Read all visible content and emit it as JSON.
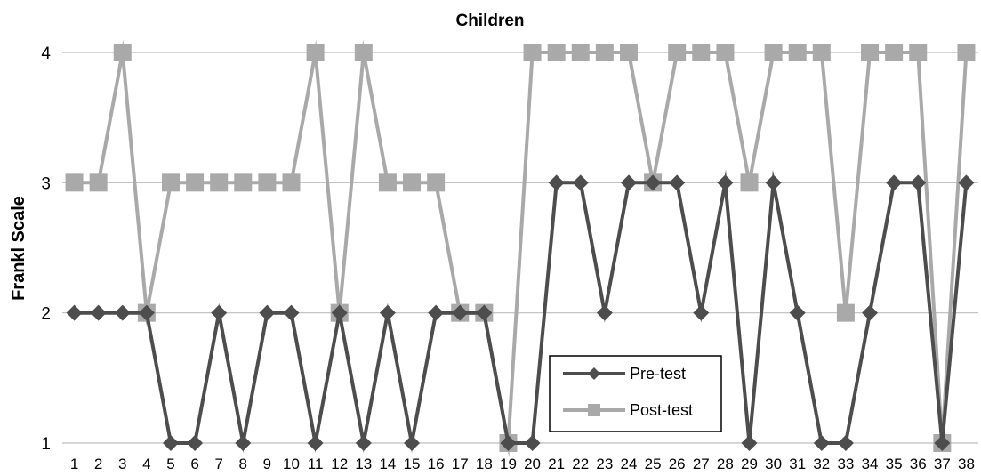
{
  "chart_data": {
    "type": "line",
    "title": "Children",
    "xlabel": "",
    "ylabel": "Frankl Scale",
    "x": [
      1,
      2,
      3,
      4,
      5,
      6,
      7,
      8,
      9,
      10,
      11,
      12,
      13,
      14,
      15,
      16,
      17,
      18,
      19,
      20,
      21,
      22,
      23,
      24,
      25,
      26,
      27,
      28,
      29,
      30,
      31,
      32,
      33,
      34,
      35,
      36,
      37,
      38
    ],
    "x_tick_labels": [
      "1",
      "2",
      "3",
      "4",
      "5",
      "6",
      "7",
      "8",
      "9",
      "10",
      "11",
      "12",
      "13",
      "14",
      "15",
      "16",
      "17",
      "18",
      "19",
      "20",
      "21",
      "22",
      "23",
      "24",
      "25",
      "26",
      "27",
      "28",
      "29",
      "30",
      "31",
      "32",
      "33",
      "34",
      "35",
      "36",
      "37",
      "38"
    ],
    "y_ticks": [
      1,
      2,
      3,
      4
    ],
    "y_tick_labels": [
      "1",
      "2",
      "3",
      "4"
    ],
    "ylim": [
      1,
      4
    ],
    "grid": "horizontal",
    "legend_position": "bottom-center",
    "series": [
      {
        "name": "Pre-test",
        "marker": "diamond",
        "color": "#4d4d4d",
        "values": [
          2,
          2,
          2,
          2,
          1,
          1,
          2,
          1,
          2,
          2,
          1,
          2,
          1,
          2,
          1,
          2,
          2,
          2,
          1,
          1,
          3,
          3,
          2,
          3,
          3,
          3,
          2,
          3,
          1,
          3,
          2,
          1,
          1,
          2,
          3,
          3,
          1,
          3
        ]
      },
      {
        "name": "Post-test",
        "marker": "square",
        "color": "#a9a9a9",
        "values": [
          3,
          3,
          4,
          2,
          3,
          3,
          3,
          3,
          3,
          3,
          4,
          2,
          4,
          3,
          3,
          3,
          2,
          2,
          1,
          4,
          4,
          4,
          4,
          4,
          3,
          4,
          4,
          4,
          3,
          4,
          4,
          4,
          2,
          4,
          4,
          4,
          1,
          4
        ]
      }
    ]
  }
}
